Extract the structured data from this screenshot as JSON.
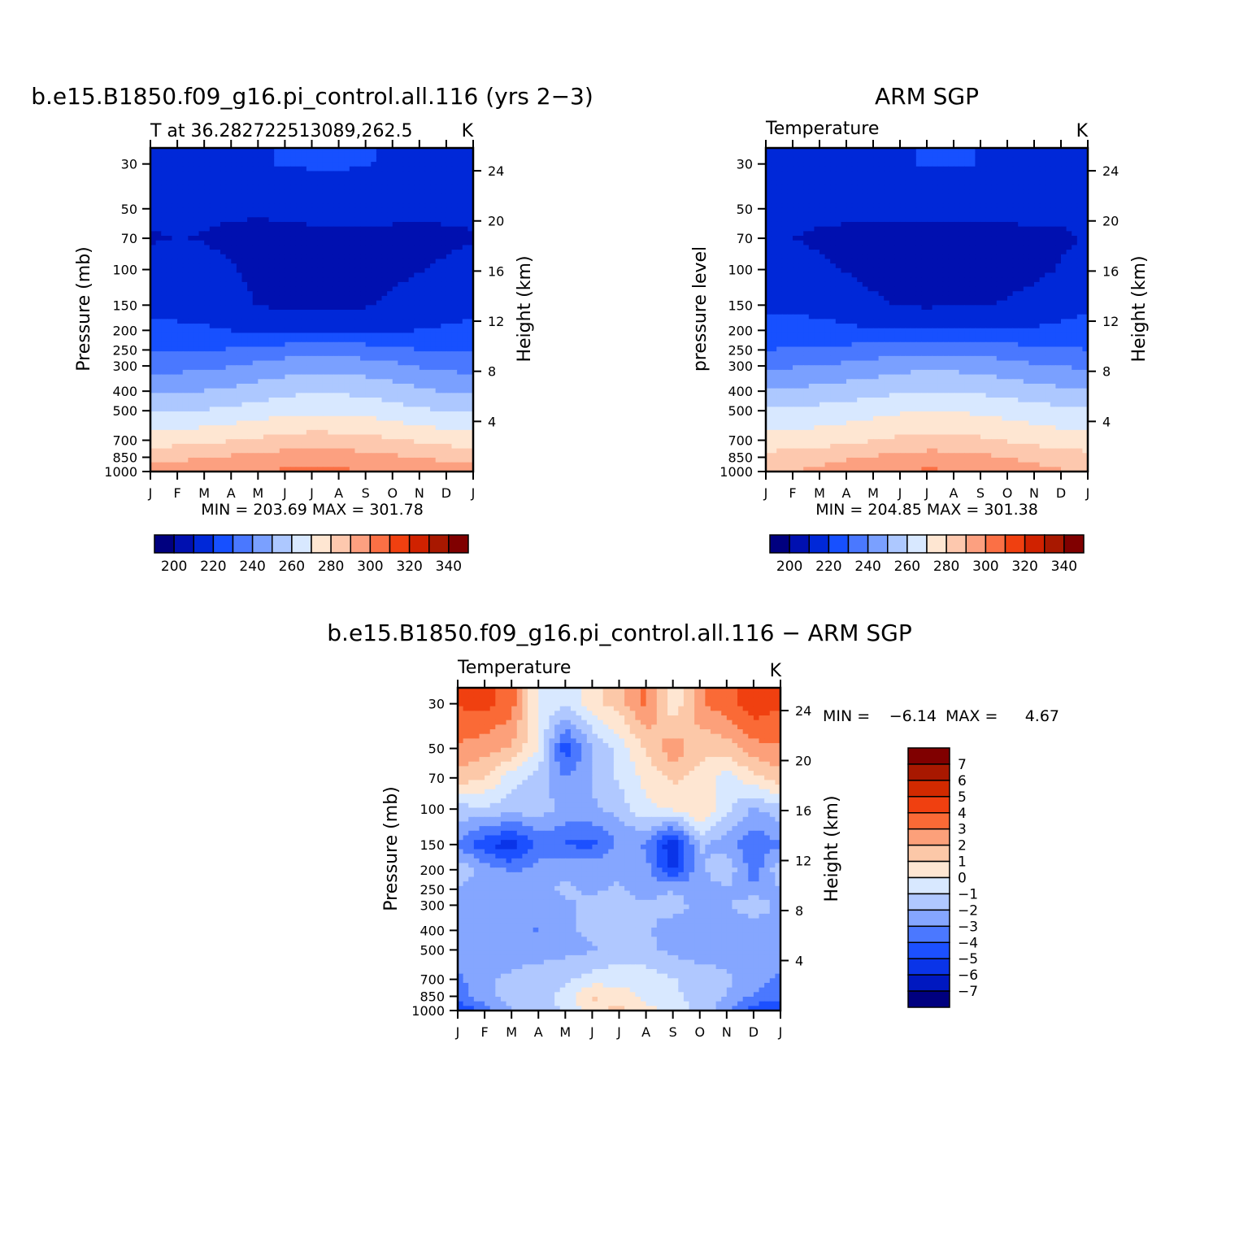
{
  "figure": {
    "colors": {
      "abs_levels": [
        "#00007f",
        "#0010b0",
        "#0028d8",
        "#1750ff",
        "#4a78ff",
        "#7aa0ff",
        "#adc8ff",
        "#d8e8ff",
        "#fee6d2",
        "#fdc8ae",
        "#fca080",
        "#fb7045",
        "#f04010",
        "#d02200",
        "#a81800",
        "#800000"
      ],
      "diff_levels": [
        "#00007f",
        "#0018c0",
        "#0a34e8",
        "#1c50ff",
        "#4b78ff",
        "#85a6ff",
        "#b0c8ff",
        "#d8e8ff",
        "#fee6d2",
        "#fcc8a8",
        "#fca07a",
        "#fa6a36",
        "#f04010",
        "#d22a00",
        "#a81800",
        "#800000"
      ]
    },
    "panels": [
      {
        "id": "model",
        "title": "b.e15.B1850.f09_g16.pi_control.all.116 (yrs 2−3)",
        "left_label": "T at 36.282722513089,262.5",
        "units": "K",
        "y_label": "Pressure (mb)",
        "y2_label": "Height (km)",
        "stats": "MIN = 203.69 MAX = 301.78",
        "colorbar_labels": [
          "200",
          "220",
          "240",
          "260",
          "280",
          "300",
          "320",
          "340"
        ]
      },
      {
        "id": "obs",
        "title": "ARM SGP",
        "left_label": "Temperature",
        "units": "K",
        "y_label": "pressure level",
        "y2_label": "Height (km)",
        "stats": "MIN = 204.85 MAX = 301.38",
        "colorbar_labels": [
          "200",
          "220",
          "240",
          "260",
          "280",
          "300",
          "320",
          "340"
        ]
      },
      {
        "id": "diff",
        "title": "b.e15.B1850.f09_g16.pi_control.all.116 − ARM SGP",
        "left_label": "Temperature",
        "units": "K",
        "y_label": "Pressure (mb)",
        "y2_label": "Height (km)",
        "stats_min": "MIN =",
        "stats_min_value": "−6.14",
        "stats_max": "MAX =",
        "stats_max_value": "4.67",
        "colorbar_labels": [
          "7",
          "6",
          "5",
          "4",
          "3",
          "2",
          "1",
          "0",
          "−1",
          "−2",
          "−3",
          "−4",
          "−5",
          "−6",
          "−7"
        ]
      }
    ]
  },
  "chart_data": [
    {
      "type": "heatmap",
      "title": "b.e15.B1850.f09_g16.pi_control.all.116 (yrs 2−3)",
      "subtitle": "T at 36.282722513089,262.5",
      "units": "K",
      "xlabel": "",
      "ylabel": "Pressure (mb)",
      "y2label": "Height (km)",
      "x": [
        "J",
        "F",
        "M",
        "A",
        "M",
        "J",
        "J",
        "A",
        "S",
        "O",
        "N",
        "D",
        "J"
      ],
      "y_ticks": [
        30,
        50,
        70,
        100,
        150,
        200,
        250,
        300,
        400,
        500,
        700,
        850,
        1000
      ],
      "y2_ticks": [
        24,
        20,
        16,
        12,
        8,
        4
      ],
      "ylim": [
        1000,
        25
      ],
      "y_scale": "log",
      "levels": [
        200,
        210,
        220,
        230,
        240,
        250,
        260,
        270,
        280,
        290,
        300,
        310,
        320,
        330,
        340
      ],
      "pressure_levels": [
        1000,
        850,
        700,
        500,
        400,
        300,
        250,
        200,
        150,
        100,
        70,
        50,
        30
      ],
      "z": [
        [
          293.7,
          294.9,
          297.9,
          298.9,
          300.6,
          301.2,
          301.8,
          301.5,
          300.4,
          299.5,
          297.4,
          295.1,
          293.7
        ],
        [
          286.6,
          287.9,
          289.6,
          291.3,
          292.8,
          294.5,
          295.5,
          295.1,
          293.4,
          291.6,
          289.5,
          287.9,
          286.6
        ],
        [
          275.2,
          276.1,
          277.5,
          279.8,
          281.6,
          283.4,
          284.7,
          284.3,
          283.1,
          280.9,
          278.8,
          276.3,
          275.2
        ],
        [
          259.1,
          259.4,
          260.6,
          262.3,
          264.4,
          266.9,
          268.2,
          267.9,
          266.6,
          264.3,
          261.4,
          259.9,
          259.1
        ],
        [
          248.8,
          249.1,
          250.2,
          252.3,
          254.7,
          257.4,
          258.9,
          258.6,
          257.2,
          254.9,
          251.7,
          249.6,
          248.8
        ],
        [
          236.3,
          236.8,
          237.9,
          239.7,
          242.1,
          244.8,
          246.4,
          246.1,
          244.6,
          242.2,
          239.4,
          237.3,
          236.3
        ],
        [
          228.4,
          228.9,
          229.6,
          230.8,
          232.5,
          234.6,
          235.9,
          235.7,
          234.4,
          232.5,
          230.1,
          228.9,
          228.4
        ],
        [
          221.3,
          221.1,
          220.8,
          219.9,
          218.7,
          218.3,
          219.1,
          219.2,
          218.8,
          219.3,
          220.1,
          221.1,
          221.3
        ],
        [
          218.4,
          218.1,
          217.6,
          215.4,
          209.4,
          208.6,
          208.6,
          208.8,
          208.9,
          211.9,
          214.3,
          216.6,
          218.4
        ],
        [
          214.1,
          213.6,
          213.2,
          211.4,
          206.4,
          205.5,
          205.5,
          205.4,
          205.6,
          207.9,
          209.6,
          211.4,
          214.1
        ],
        [
          209.1,
          210.3,
          209.4,
          207.2,
          206.3,
          206.6,
          207.1,
          206.9,
          207.5,
          207.1,
          206.9,
          208.2,
          209.1
        ],
        [
          212.3,
          212.5,
          212.6,
          212.1,
          211.7,
          212.9,
          213.4,
          213.4,
          213.9,
          213.1,
          212.5,
          212.3,
          212.3
        ],
        [
          216.1,
          216.3,
          216.7,
          217.9,
          219.3,
          220.4,
          220.9,
          221.1,
          220.4,
          219.1,
          217.3,
          216.4,
          216.1
        ]
      ]
    },
    {
      "type": "heatmap",
      "title": "ARM SGP",
      "subtitle": "Temperature",
      "units": "K",
      "xlabel": "",
      "ylabel": "pressure level",
      "y2label": "Height (km)",
      "x": [
        "J",
        "F",
        "M",
        "A",
        "M",
        "J",
        "J",
        "A",
        "S",
        "O",
        "N",
        "D",
        "J"
      ],
      "y_ticks": [
        30,
        50,
        70,
        100,
        150,
        200,
        250,
        300,
        400,
        500,
        700,
        850,
        1000
      ],
      "y2_ticks": [
        24,
        20,
        16,
        12,
        8,
        4
      ],
      "ylim": [
        1000,
        25
      ],
      "y_scale": "log",
      "levels": [
        200,
        210,
        220,
        230,
        240,
        250,
        260,
        270,
        280,
        290,
        300,
        310,
        320,
        330,
        340
      ],
      "pressure_levels": [
        1000,
        850,
        700,
        500,
        400,
        300,
        250,
        200,
        150,
        100,
        70,
        50,
        30
      ],
      "z": [
        [
          288.6,
          289.9,
          292.7,
          294.9,
          297.1,
          299.3,
          301.4,
          300.6,
          298.4,
          296.1,
          293.7,
          291.1,
          288.6
        ],
        [
          283.4,
          284.6,
          286.4,
          288.8,
          291.1,
          292.9,
          294.3,
          293.9,
          292.1,
          289.6,
          287.1,
          285.1,
          283.4
        ],
        [
          273.3,
          274.1,
          275.6,
          277.4,
          279.6,
          281.9,
          283.4,
          283.1,
          281.6,
          279.4,
          276.9,
          274.8,
          273.3
        ],
        [
          261.6,
          262.1,
          263.2,
          264.9,
          266.9,
          268.7,
          269.6,
          269.4,
          268.1,
          266.2,
          264.1,
          262.6,
          261.6
        ],
        [
          251.4,
          251.9,
          253.1,
          254.8,
          256.9,
          258.7,
          259.7,
          259.4,
          258.3,
          256.4,
          254.1,
          252.4,
          251.4
        ],
        [
          238.6,
          239.1,
          240.3,
          242.1,
          244.3,
          246.4,
          247.6,
          247.3,
          246.1,
          243.9,
          241.4,
          239.6,
          238.6
        ],
        [
          230.2,
          230.6,
          231.5,
          232.9,
          234.6,
          236.5,
          237.6,
          237.3,
          236.2,
          234.4,
          232.3,
          230.9,
          230.2
        ],
        [
          222.6,
          222.4,
          222.1,
          221.6,
          220.9,
          220.8,
          221.3,
          221.1,
          220.6,
          220.7,
          221.3,
          222.1,
          222.6
        ],
        [
          218.9,
          218.6,
          217.9,
          216.1,
          211.9,
          209.4,
          208.8,
          209.1,
          209.6,
          210.9,
          213.1,
          215.9,
          218.9
        ],
        [
          213.4,
          212.9,
          211.6,
          209.4,
          206.9,
          205.6,
          205.1,
          205.3,
          205.6,
          206.7,
          207.9,
          210.6,
          213.4
        ],
        [
          210.6,
          210.1,
          208.6,
          207.9,
          207.2,
          206.9,
          206.9,
          207.1,
          207.4,
          207.6,
          207.9,
          208.6,
          210.6
        ],
        [
          212.7,
          212.6,
          212.4,
          212.1,
          212.1,
          212.3,
          212.6,
          212.7,
          212.7,
          212.6,
          212.4,
          212.5,
          212.7
        ],
        [
          213.1,
          213.4,
          214.1,
          215.6,
          217.6,
          219.4,
          220.4,
          220.6,
          219.9,
          218.4,
          216.3,
          214.4,
          213.1
        ]
      ]
    },
    {
      "type": "heatmap",
      "title": "b.e15.B1850.f09_g16.pi_control.all.116 − ARM SGP",
      "subtitle": "Temperature",
      "units": "K",
      "xlabel": "",
      "ylabel": "Pressure (mb)",
      "y2label": "Height (km)",
      "x": [
        "J",
        "F",
        "M",
        "A",
        "M",
        "J",
        "J",
        "A",
        "S",
        "O",
        "N",
        "D",
        "J"
      ],
      "y_ticks": [
        30,
        50,
        70,
        100,
        150,
        200,
        250,
        300,
        400,
        500,
        700,
        850,
        1000
      ],
      "y2_ticks": [
        24,
        20,
        16,
        12,
        8,
        4
      ],
      "ylim": [
        1000,
        25
      ],
      "y_scale": "log",
      "levels": [
        -7,
        -6,
        -5,
        -4,
        -3,
        -2,
        -1,
        0,
        1,
        2,
        3,
        4,
        5,
        6,
        7
      ],
      "pressure_levels": [
        1000,
        850,
        700,
        500,
        400,
        300,
        250,
        200,
        150,
        100,
        70,
        50,
        30
      ],
      "z": [
        [
          -5.1,
          -3.4,
          -2.1,
          -1.3,
          -0.9,
          0.6,
          1.4,
          0.4,
          -0.6,
          -1.2,
          -2.6,
          -4.6,
          -5.1
        ],
        [
          -3.6,
          -2.3,
          -1.6,
          -1.2,
          -0.8,
          1.2,
          0.5,
          -0.3,
          -0.8,
          -1.4,
          -2.1,
          -3.1,
          -3.6
        ],
        [
          -3.2,
          -2.2,
          -1.8,
          -1.4,
          -1.2,
          -0.6,
          -0.3,
          -0.4,
          -0.9,
          -1.4,
          -1.8,
          -2.6,
          -3.2
        ],
        [
          -2.6,
          -2.8,
          -2.4,
          -2.5,
          -2.3,
          -2.1,
          -1.6,
          -1.7,
          -2.3,
          -2.6,
          -2.4,
          -2.8,
          -2.6
        ],
        [
          -2.4,
          -2.6,
          -2.7,
          -3.1,
          -2.2,
          -1.8,
          -1.9,
          -1.8,
          -2.6,
          -2.6,
          -2.3,
          -2.7,
          -2.4
        ],
        [
          -2.3,
          -2.3,
          -2.4,
          -2.4,
          -2.1,
          -1.8,
          -1.6,
          -1.9,
          -1.5,
          -2.4,
          -2.2,
          -1.3,
          -2.3
        ],
        [
          -2.1,
          -2.3,
          -2.4,
          -2.1,
          -1.9,
          -2.1,
          -1.9,
          -2.4,
          -2.1,
          -2.4,
          -2.1,
          -2.7,
          -2.1
        ],
        [
          -1.3,
          -2.4,
          -3.2,
          -2.6,
          -2.1,
          -2.2,
          -2.1,
          -2.6,
          -5.2,
          -2.3,
          -1.2,
          -3.6,
          -1.3
        ],
        [
          -3.1,
          -4.8,
          -5.7,
          -3.7,
          -4.1,
          -4.3,
          -2.9,
          -3.1,
          -6.1,
          -1.8,
          -2.6,
          -3.8,
          -3.1
        ],
        [
          -1.4,
          -1.2,
          -1.6,
          -1.4,
          -2.3,
          -2.2,
          -1.6,
          -0.2,
          0.1,
          1.1,
          -0.7,
          -2.1,
          -1.4
        ],
        [
          1.6,
          1.1,
          -0.6,
          -1.4,
          -3.1,
          -1.9,
          -0.8,
          0.3,
          1.2,
          0.6,
          -0.6,
          0.7,
          1.6
        ],
        [
          2.9,
          2.4,
          1.9,
          -0.1,
          -4.7,
          -2.1,
          -0.7,
          1.2,
          2.7,
          1.3,
          1.5,
          2.6,
          2.9
        ],
        [
          4.1,
          4.3,
          3.5,
          -0.3,
          -0.8,
          0.6,
          1.5,
          3.2,
          0.1,
          2.8,
          3.6,
          4.7,
          4.1
        ]
      ]
    }
  ]
}
